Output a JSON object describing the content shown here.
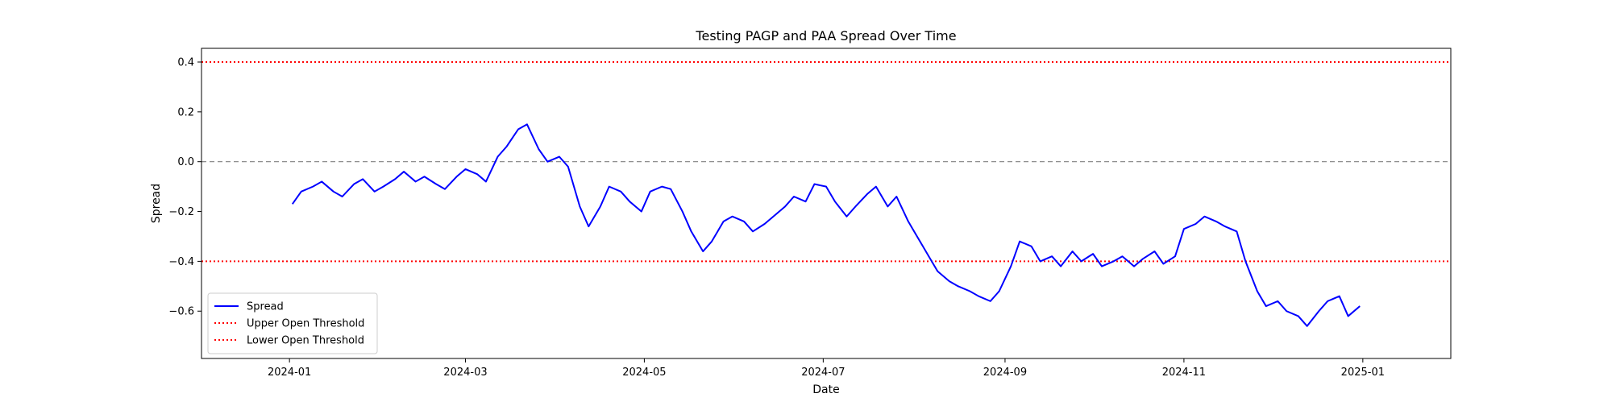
{
  "chart_data": {
    "type": "line",
    "title": "Testing PAGP and PAA Spread Over Time",
    "xlabel": "Date",
    "ylabel": "Spread",
    "xlim": [
      "2023-12-02",
      "2025-01-31"
    ],
    "ylim": [
      -0.79,
      0.455
    ],
    "x_ticks": [
      "2024-01-01",
      "2024-03-01",
      "2024-05-01",
      "2024-07-01",
      "2024-09-01",
      "2024-11-01",
      "2025-01-01"
    ],
    "x_tick_labels": [
      "2024-01",
      "2024-03",
      "2024-05",
      "2024-07",
      "2024-09",
      "2024-11",
      "2025-01"
    ],
    "y_ticks": [
      0.4,
      0.2,
      0.0,
      -0.2,
      -0.4,
      -0.6
    ],
    "y_tick_labels": [
      "0.4",
      "0.2",
      "0.0",
      "−0.2",
      "−0.4",
      "−0.6"
    ],
    "grid": false,
    "legend_position": "lower-left",
    "series": [
      {
        "name": "Spread",
        "color": "#0000ff",
        "style": "solid",
        "x": [
          "2024-01-02",
          "2024-01-05",
          "2024-01-09",
          "2024-01-12",
          "2024-01-16",
          "2024-01-19",
          "2024-01-23",
          "2024-01-26",
          "2024-01-30",
          "2024-02-02",
          "2024-02-06",
          "2024-02-09",
          "2024-02-13",
          "2024-02-16",
          "2024-02-20",
          "2024-02-23",
          "2024-02-27",
          "2024-03-01",
          "2024-03-05",
          "2024-03-08",
          "2024-03-12",
          "2024-03-15",
          "2024-03-19",
          "2024-03-22",
          "2024-03-26",
          "2024-03-29",
          "2024-04-02",
          "2024-04-05",
          "2024-04-09",
          "2024-04-12",
          "2024-04-16",
          "2024-04-19",
          "2024-04-23",
          "2024-04-26",
          "2024-04-30",
          "2024-05-03",
          "2024-05-07",
          "2024-05-10",
          "2024-05-14",
          "2024-05-17",
          "2024-05-21",
          "2024-05-24",
          "2024-05-28",
          "2024-05-31",
          "2024-06-04",
          "2024-06-07",
          "2024-06-11",
          "2024-06-14",
          "2024-06-18",
          "2024-06-21",
          "2024-06-25",
          "2024-06-28",
          "2024-07-02",
          "2024-07-05",
          "2024-07-09",
          "2024-07-12",
          "2024-07-16",
          "2024-07-19",
          "2024-07-23",
          "2024-07-26",
          "2024-07-30",
          "2024-08-02",
          "2024-08-06",
          "2024-08-09",
          "2024-08-13",
          "2024-08-16",
          "2024-08-20",
          "2024-08-23",
          "2024-08-27",
          "2024-08-30",
          "2024-09-03",
          "2024-09-06",
          "2024-09-10",
          "2024-09-13",
          "2024-09-17",
          "2024-09-20",
          "2024-09-24",
          "2024-09-27",
          "2024-10-01",
          "2024-10-04",
          "2024-10-08",
          "2024-10-11",
          "2024-10-15",
          "2024-10-18",
          "2024-10-22",
          "2024-10-25",
          "2024-10-29",
          "2024-11-01",
          "2024-11-05",
          "2024-11-08",
          "2024-11-12",
          "2024-11-15",
          "2024-11-19",
          "2024-11-22",
          "2024-11-26",
          "2024-11-29",
          "2024-12-03",
          "2024-12-06",
          "2024-12-10",
          "2024-12-13",
          "2024-12-17",
          "2024-12-20",
          "2024-12-24",
          "2024-12-27",
          "2024-12-31"
        ],
        "values": [
          -0.17,
          -0.12,
          -0.1,
          -0.08,
          -0.12,
          -0.14,
          -0.09,
          -0.07,
          -0.12,
          -0.1,
          -0.07,
          -0.04,
          -0.08,
          -0.06,
          -0.09,
          -0.11,
          -0.06,
          -0.03,
          -0.05,
          -0.08,
          0.02,
          0.06,
          0.13,
          0.15,
          0.05,
          0.0,
          0.02,
          -0.02,
          -0.18,
          -0.26,
          -0.18,
          -0.1,
          -0.12,
          -0.16,
          -0.2,
          -0.12,
          -0.1,
          -0.11,
          -0.2,
          -0.28,
          -0.36,
          -0.32,
          -0.24,
          -0.22,
          -0.24,
          -0.28,
          -0.25,
          -0.22,
          -0.18,
          -0.14,
          -0.16,
          -0.09,
          -0.1,
          -0.16,
          -0.22,
          -0.18,
          -0.13,
          -0.1,
          -0.18,
          -0.14,
          -0.24,
          -0.3,
          -0.38,
          -0.44,
          -0.48,
          -0.5,
          -0.52,
          -0.54,
          -0.56,
          -0.52,
          -0.42,
          -0.32,
          -0.34,
          -0.4,
          -0.38,
          -0.42,
          -0.36,
          -0.4,
          -0.37,
          -0.42,
          -0.4,
          -0.38,
          -0.42,
          -0.39,
          -0.36,
          -0.41,
          -0.38,
          -0.27,
          -0.25,
          -0.22,
          -0.24,
          -0.26,
          -0.28,
          -0.4,
          -0.52,
          -0.58,
          -0.56,
          -0.6,
          -0.62,
          -0.66,
          -0.6,
          -0.56,
          -0.54,
          -0.62,
          -0.58
        ]
      },
      {
        "name": "Upper Open Threshold",
        "color": "#ff0000",
        "style": "dotted",
        "y": 0.4
      },
      {
        "name": "Lower Open Threshold",
        "color": "#ff0000",
        "style": "dotted",
        "y": -0.4
      },
      {
        "name": "",
        "color": "#808080",
        "style": "dashed",
        "y": 0.0
      }
    ]
  }
}
